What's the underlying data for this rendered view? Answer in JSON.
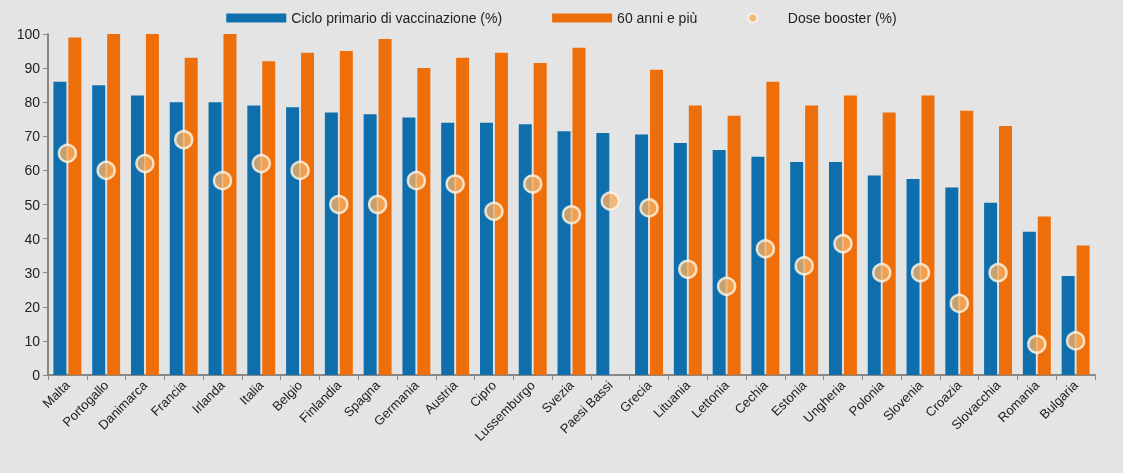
{
  "chart_data": {
    "type": "bar",
    "categories": [
      "Malta",
      "Portogallo",
      "Danimarca",
      "Francia",
      "Irlanda",
      "Italia",
      "Belgio",
      "Finlandia",
      "Spagna",
      "Germania",
      "Austria",
      "Cipro",
      "Lussemburgo",
      "Svezia",
      "Paesi Bassi",
      "Grecia",
      "Lituania",
      "Lettonia",
      "Cechia",
      "Estonia",
      "Ungheria",
      "Polonia",
      "Slovenia",
      "Croazia",
      "Slovacchia",
      "Romania",
      "Bulgaria"
    ],
    "series": [
      {
        "name": "Ciclo primario di vaccinazione (%)",
        "color": "#0f6fad",
        "values": [
          86,
          85,
          82,
          80,
          80,
          79,
          78.5,
          77,
          76.5,
          75.5,
          74,
          74,
          73.5,
          71.5,
          71,
          70.5,
          68,
          66,
          64,
          62.5,
          62.5,
          58.5,
          57.5,
          55,
          50.5,
          42,
          29
        ]
      },
      {
        "name": "60 anni e più",
        "color": "#ee6e0a",
        "values": [
          99,
          100,
          100,
          93,
          100,
          92,
          94.5,
          95,
          98.5,
          90,
          93,
          94.5,
          91.5,
          96,
          null,
          89.5,
          79,
          76,
          86,
          79,
          82,
          77,
          82,
          77.5,
          73,
          46.5,
          38
        ]
      },
      {
        "name": "Dose booster (%)",
        "type": "scatter",
        "color": "#f3ac62",
        "marker": "circle",
        "x": [
          "Malta",
          "Portogallo",
          "Danimarca",
          "Francia",
          "Irlanda",
          "Italia",
          "Belgio",
          "Finlandia",
          "Spagna",
          "Germania",
          "Austria",
          "Cipro",
          "Lussemburgo",
          "Svezia",
          "Paesi Bassi",
          "Grecia",
          "Lituania",
          "Lettonia",
          "Cechia",
          "Estonia",
          "Ungheria",
          "Polonia",
          "Slovenia",
          "Croazia",
          "Slovacchia",
          "Romania",
          "Bulgaria"
        ],
        "values": [
          65,
          60,
          62,
          69,
          57,
          62,
          60,
          50,
          50,
          57,
          56,
          48,
          56,
          47,
          51,
          49,
          31,
          26,
          37,
          32,
          38.5,
          30,
          30,
          21,
          30,
          9,
          10
        ]
      }
    ],
    "ylim": [
      0,
      100
    ],
    "yticks": [
      0,
      10,
      20,
      30,
      40,
      50,
      60,
      70,
      80,
      90,
      100
    ],
    "grid": false,
    "legend": "top"
  }
}
